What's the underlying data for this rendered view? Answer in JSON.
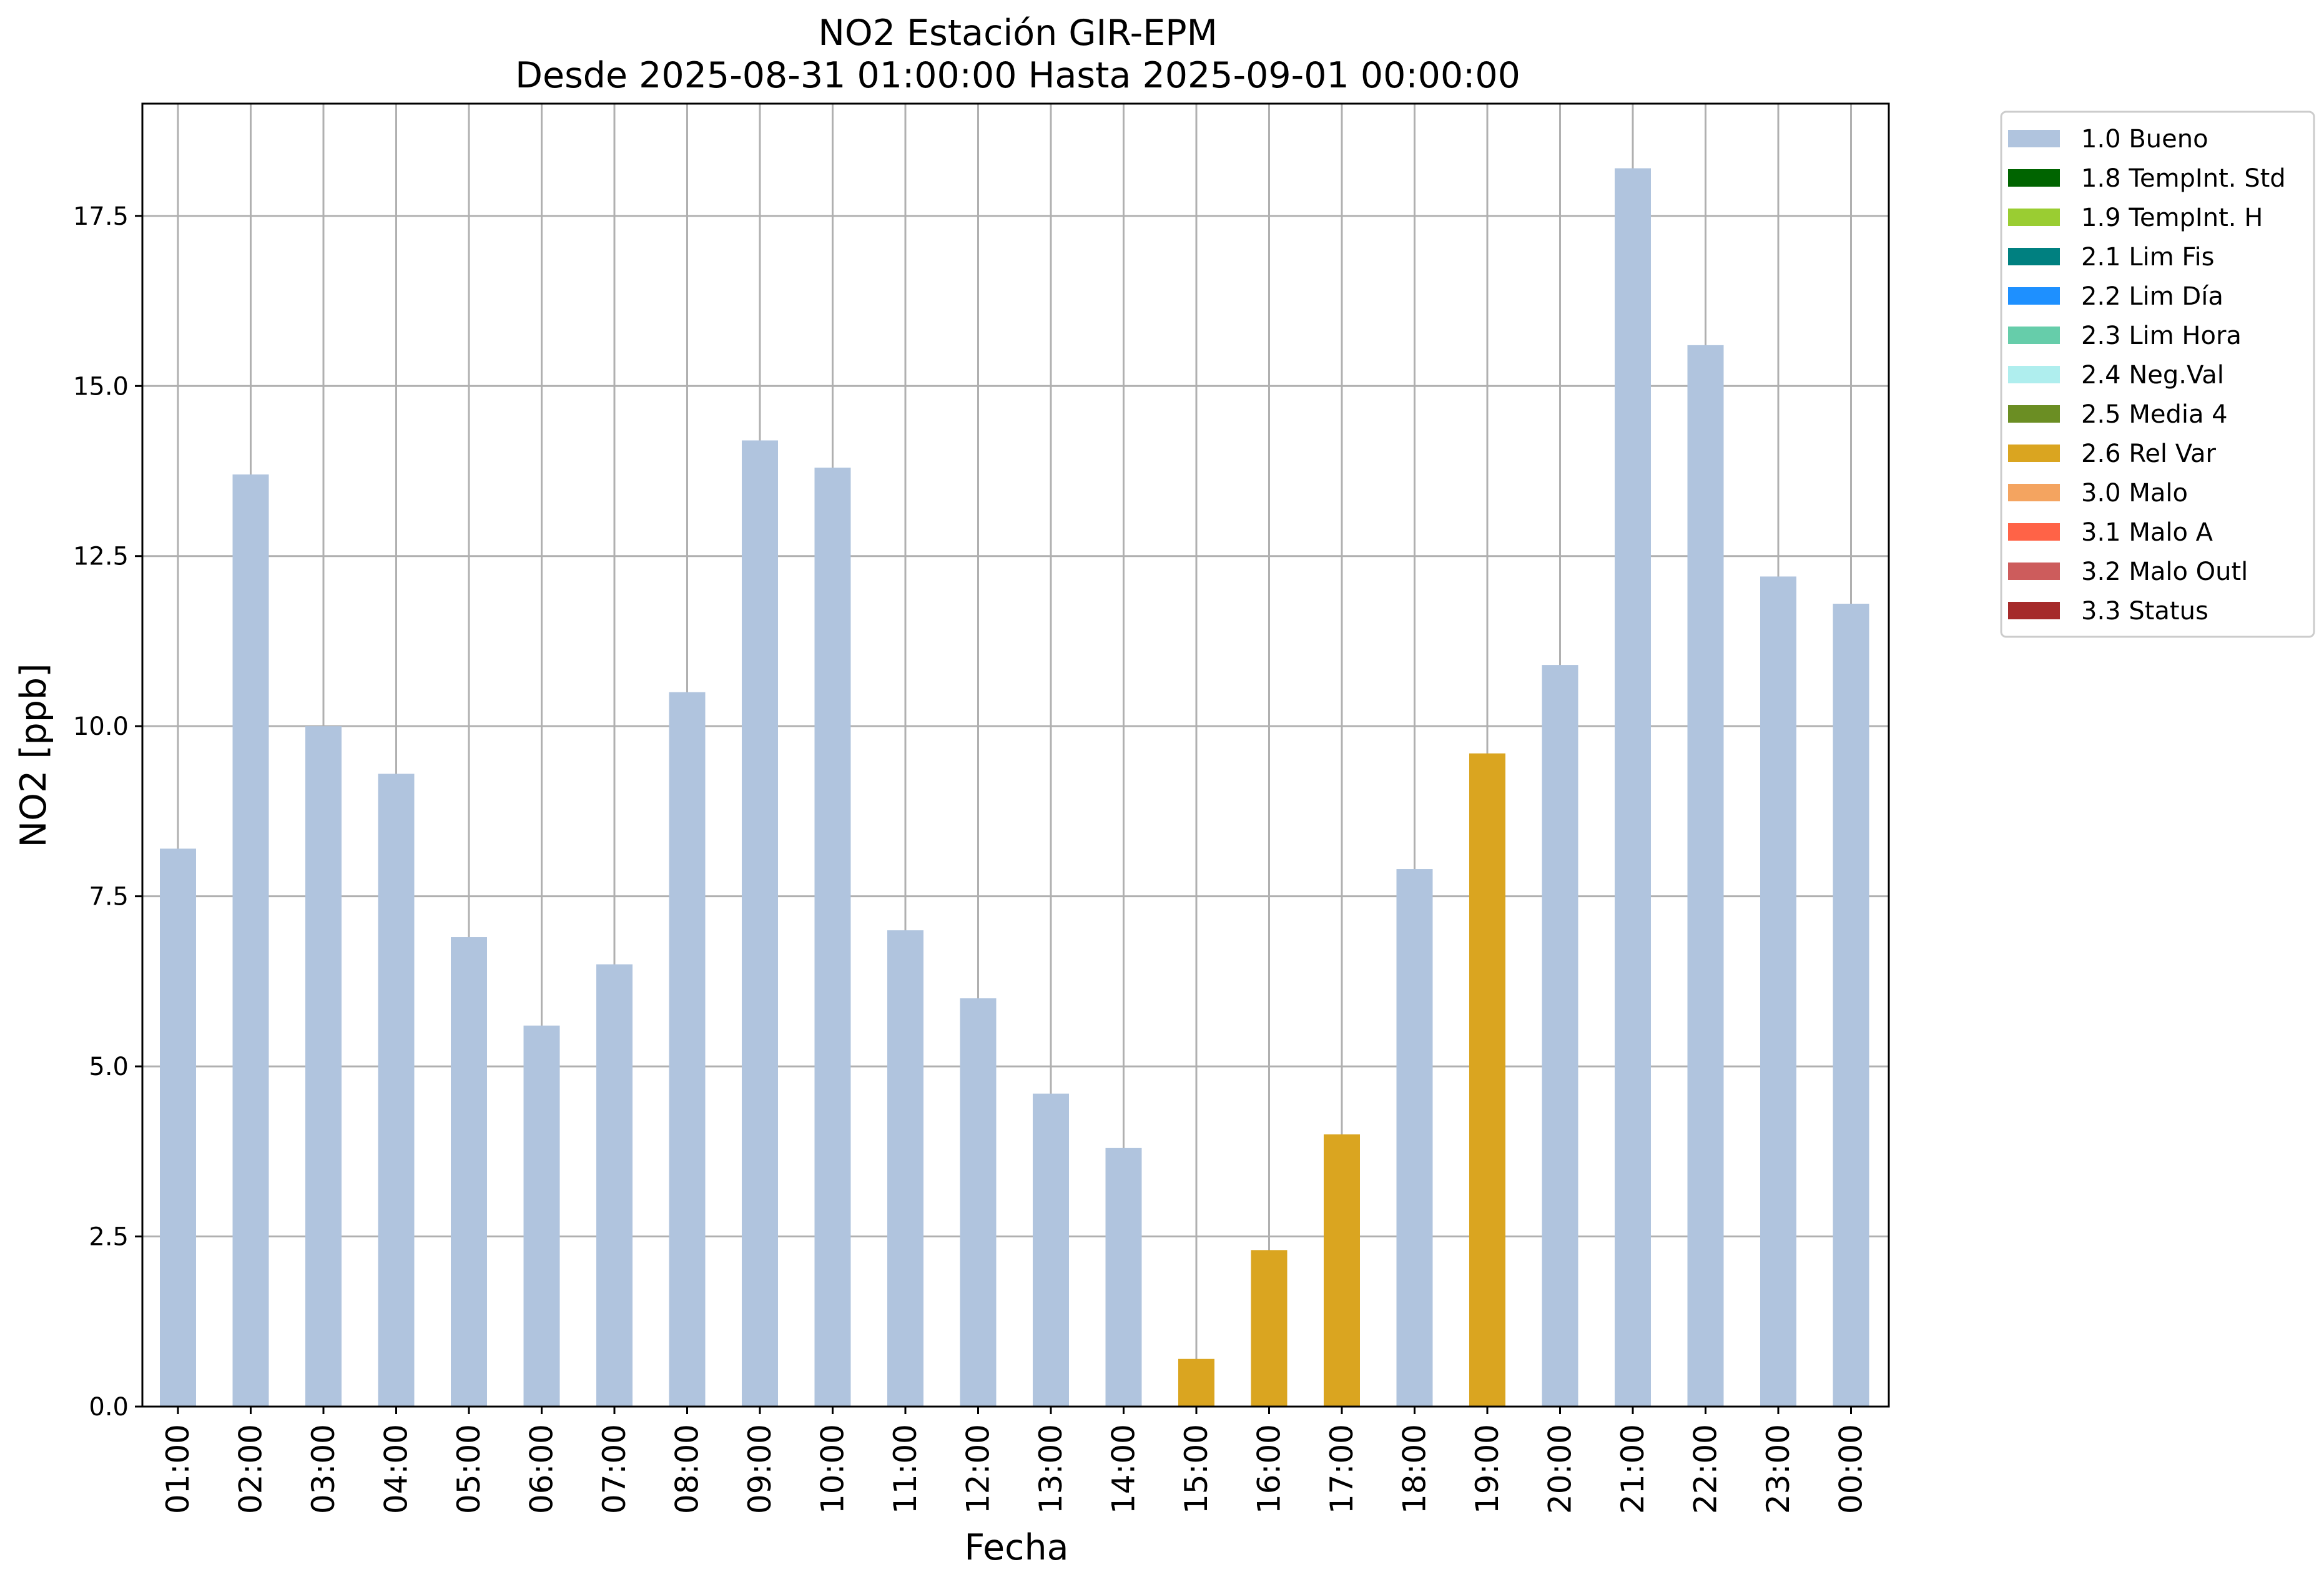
{
  "chart_data": {
    "type": "bar",
    "title": "NO2 Estación GIR-EPM",
    "subtitle": "Desde 2025-08-31 01:00:00 Hasta 2025-09-01 00:00:00",
    "xlabel": "Fecha",
    "ylabel": "NO2 [ppb]",
    "ylim": [
      0,
      19.15
    ],
    "yticks": [
      "0.0",
      "2.5",
      "5.0",
      "7.5",
      "10.0",
      "12.5",
      "15.0",
      "17.5"
    ],
    "ytick_values": [
      0,
      2.5,
      5,
      7.5,
      10,
      12.5,
      15,
      17.5
    ],
    "grid": true,
    "legend_position": "outside-top-right",
    "categories": [
      "01:00",
      "02:00",
      "03:00",
      "04:00",
      "05:00",
      "06:00",
      "07:00",
      "08:00",
      "09:00",
      "10:00",
      "11:00",
      "12:00",
      "13:00",
      "14:00",
      "15:00",
      "16:00",
      "17:00",
      "18:00",
      "19:00",
      "20:00",
      "21:00",
      "22:00",
      "23:00",
      "00:00"
    ],
    "values": [
      8.2,
      13.7,
      10.0,
      9.3,
      6.9,
      5.6,
      6.5,
      10.5,
      14.2,
      13.8,
      7.0,
      6.0,
      4.6,
      3.8,
      0.7,
      2.3,
      4.0,
      7.9,
      9.6,
      10.9,
      18.2,
      15.6,
      12.2,
      11.8
    ],
    "flags": [
      "1.0 Bueno",
      "1.0 Bueno",
      "1.0 Bueno",
      "1.0 Bueno",
      "1.0 Bueno",
      "1.0 Bueno",
      "1.0 Bueno",
      "1.0 Bueno",
      "1.0 Bueno",
      "1.0 Bueno",
      "1.0 Bueno",
      "1.0 Bueno",
      "1.0 Bueno",
      "1.0 Bueno",
      "2.6 Rel Var",
      "2.6 Rel Var",
      "2.6 Rel Var",
      "1.0 Bueno",
      "2.6 Rel Var",
      "1.0 Bueno",
      "1.0 Bueno",
      "1.0 Bueno",
      "1.0 Bueno",
      "1.0 Bueno"
    ],
    "legend": [
      {
        "label": "1.0 Bueno",
        "color": "#b0c4de"
      },
      {
        "label": "1.8 TempInt. Std",
        "color": "#006400"
      },
      {
        "label": "1.9 TempInt. H",
        "color": "#9acd32"
      },
      {
        "label": "2.1 Lim Fis",
        "color": "#008080"
      },
      {
        "label": "2.2 Lim Día",
        "color": "#1e90ff"
      },
      {
        "label": "2.3 Lim Hora",
        "color": "#66cdaa"
      },
      {
        "label": "2.4 Neg.Val",
        "color": "#afeeee"
      },
      {
        "label": "2.5 Media 4",
        "color": "#6b8e23"
      },
      {
        "label": "2.6 Rel Var",
        "color": "#daa520"
      },
      {
        "label": "3.0 Malo",
        "color": "#f4a460"
      },
      {
        "label": "3.1 Malo A",
        "color": "#ff6347"
      },
      {
        "label": "3.2 Malo Outl",
        "color": "#cd5c5c"
      },
      {
        "label": "3.3 Status",
        "color": "#a52a2a"
      }
    ]
  }
}
